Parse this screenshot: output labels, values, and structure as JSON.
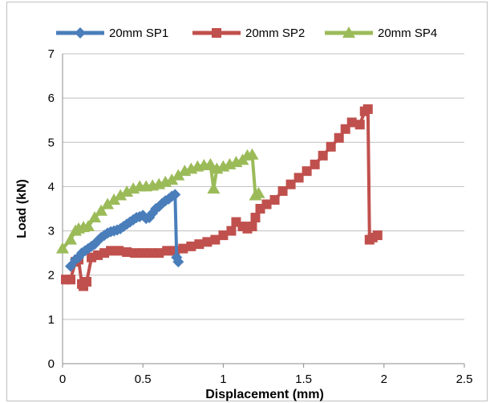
{
  "chart_data": {
    "type": "line",
    "xlabel": "Displacement (mm)",
    "ylabel": "Load (kN)",
    "xlim": [
      0,
      2.5
    ],
    "ylim": [
      0,
      7
    ],
    "xticks": [
      "0",
      "0.5",
      "1",
      "1.5",
      "2",
      "2.5"
    ],
    "yticks": [
      "0",
      "1",
      "2",
      "3",
      "4",
      "5",
      "6",
      "7"
    ],
    "grid": "horizontal",
    "legend_position": "top",
    "series": [
      {
        "name": "20mm SP1",
        "color": "#4a7ebb",
        "marker": "diamond",
        "points": [
          [
            0.05,
            2.2
          ],
          [
            0.08,
            2.35
          ],
          [
            0.1,
            2.4
          ],
          [
            0.12,
            2.5
          ],
          [
            0.14,
            2.55
          ],
          [
            0.16,
            2.6
          ],
          [
            0.18,
            2.65
          ],
          [
            0.2,
            2.7
          ],
          [
            0.22,
            2.78
          ],
          [
            0.24,
            2.85
          ],
          [
            0.26,
            2.9
          ],
          [
            0.28,
            2.95
          ],
          [
            0.3,
            2.98
          ],
          [
            0.32,
            3.0
          ],
          [
            0.34,
            3.02
          ],
          [
            0.36,
            3.05
          ],
          [
            0.38,
            3.1
          ],
          [
            0.4,
            3.15
          ],
          [
            0.42,
            3.2
          ],
          [
            0.44,
            3.25
          ],
          [
            0.46,
            3.3
          ],
          [
            0.48,
            3.32
          ],
          [
            0.5,
            3.35
          ],
          [
            0.52,
            3.28
          ],
          [
            0.54,
            3.3
          ],
          [
            0.56,
            3.4
          ],
          [
            0.58,
            3.5
          ],
          [
            0.6,
            3.55
          ],
          [
            0.62,
            3.62
          ],
          [
            0.64,
            3.68
          ],
          [
            0.66,
            3.72
          ],
          [
            0.68,
            3.78
          ],
          [
            0.7,
            3.82
          ],
          [
            0.71,
            2.4
          ],
          [
            0.72,
            2.3
          ]
        ]
      },
      {
        "name": "20mm SP2",
        "color": "#c0504d",
        "marker": "square",
        "points": [
          [
            0.02,
            1.9
          ],
          [
            0.05,
            1.9
          ],
          [
            0.08,
            2.3
          ],
          [
            0.1,
            2.35
          ],
          [
            0.12,
            1.8
          ],
          [
            0.13,
            1.75
          ],
          [
            0.15,
            1.85
          ],
          [
            0.18,
            2.4
          ],
          [
            0.22,
            2.45
          ],
          [
            0.26,
            2.5
          ],
          [
            0.3,
            2.55
          ],
          [
            0.35,
            2.55
          ],
          [
            0.4,
            2.52
          ],
          [
            0.45,
            2.5
          ],
          [
            0.5,
            2.5
          ],
          [
            0.55,
            2.5
          ],
          [
            0.6,
            2.5
          ],
          [
            0.65,
            2.55
          ],
          [
            0.7,
            2.55
          ],
          [
            0.75,
            2.6
          ],
          [
            0.8,
            2.65
          ],
          [
            0.85,
            2.7
          ],
          [
            0.9,
            2.75
          ],
          [
            0.95,
            2.8
          ],
          [
            1.0,
            2.9
          ],
          [
            1.05,
            3.0
          ],
          [
            1.08,
            3.2
          ],
          [
            1.12,
            3.1
          ],
          [
            1.15,
            3.05
          ],
          [
            1.18,
            3.1
          ],
          [
            1.2,
            3.3
          ],
          [
            1.23,
            3.5
          ],
          [
            1.27,
            3.6
          ],
          [
            1.32,
            3.7
          ],
          [
            1.37,
            3.9
          ],
          [
            1.42,
            4.05
          ],
          [
            1.47,
            4.2
          ],
          [
            1.52,
            4.35
          ],
          [
            1.57,
            4.5
          ],
          [
            1.62,
            4.7
          ],
          [
            1.67,
            4.9
          ],
          [
            1.72,
            5.1
          ],
          [
            1.76,
            5.3
          ],
          [
            1.8,
            5.45
          ],
          [
            1.85,
            5.4
          ],
          [
            1.88,
            5.7
          ],
          [
            1.9,
            5.75
          ],
          [
            1.91,
            2.8
          ],
          [
            1.93,
            2.85
          ],
          [
            1.96,
            2.9
          ]
        ]
      },
      {
        "name": "20mm SP4",
        "color": "#9bbb59",
        "marker": "triangle",
        "points": [
          [
            0.0,
            2.6
          ],
          [
            0.05,
            2.8
          ],
          [
            0.08,
            3.0
          ],
          [
            0.1,
            3.05
          ],
          [
            0.13,
            3.08
          ],
          [
            0.16,
            3.1
          ],
          [
            0.2,
            3.3
          ],
          [
            0.24,
            3.45
          ],
          [
            0.28,
            3.6
          ],
          [
            0.32,
            3.7
          ],
          [
            0.36,
            3.8
          ],
          [
            0.4,
            3.88
          ],
          [
            0.44,
            3.95
          ],
          [
            0.48,
            4.0
          ],
          [
            0.52,
            4.0
          ],
          [
            0.56,
            4.02
          ],
          [
            0.6,
            4.05
          ],
          [
            0.64,
            4.1
          ],
          [
            0.68,
            4.15
          ],
          [
            0.72,
            4.25
          ],
          [
            0.76,
            4.35
          ],
          [
            0.8,
            4.4
          ],
          [
            0.84,
            4.45
          ],
          [
            0.88,
            4.48
          ],
          [
            0.92,
            4.5
          ],
          [
            0.94,
            3.95
          ],
          [
            0.96,
            4.4
          ],
          [
            1.0,
            4.45
          ],
          [
            1.04,
            4.5
          ],
          [
            1.08,
            4.55
          ],
          [
            1.12,
            4.6
          ],
          [
            1.15,
            4.7
          ],
          [
            1.18,
            4.72
          ],
          [
            1.2,
            3.8
          ],
          [
            1.22,
            3.85
          ]
        ]
      }
    ]
  }
}
